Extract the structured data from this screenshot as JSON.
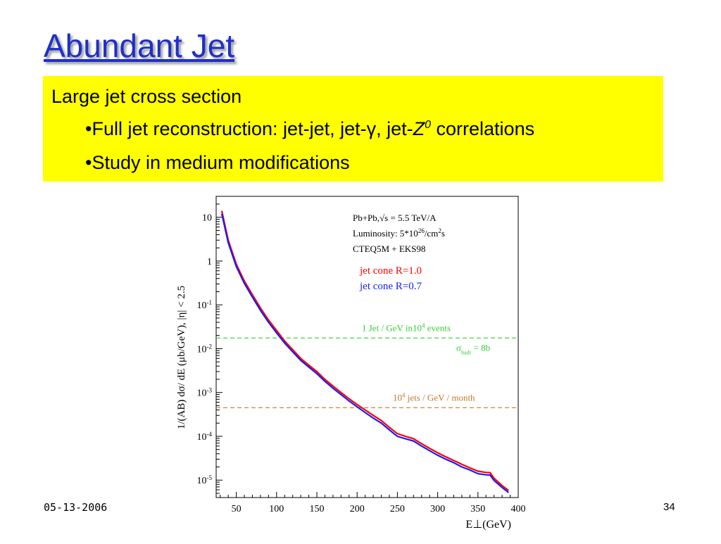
{
  "slide": {
    "title": "Abundant Jet",
    "bullets": {
      "line1": "Large jet cross section",
      "line2_prefix": "•Full jet reconstruction: jet-jet, jet-γ, jet-",
      "line2_z": "Z",
      "line2_sup": "0",
      "line2_suffix": " correlations",
      "line3": "•Study in medium modifications"
    },
    "footer_date": "05-13-2006",
    "page_number": "34"
  },
  "colors": {
    "title": "#1f2fc9",
    "highlight": "#ffff00",
    "r10": "#ff0000",
    "r07": "#1a1aff",
    "green_line": "#33cc33",
    "orange_line": "#cc7722"
  },
  "chart_data": {
    "type": "line",
    "xlabel": "E⊥(GeV)",
    "ylabel": "1/(AB) dσ/ dE  (μb/GeV),  |η| < 2.5",
    "x_ticks": [
      50,
      100,
      150,
      200,
      250,
      300,
      350,
      400
    ],
    "y_ticks": [
      {
        "value": 10,
        "label": "10"
      },
      {
        "value": 1,
        "label": "1"
      },
      {
        "value": 0.1,
        "base": "10",
        "exp": "-1"
      },
      {
        "value": 0.01,
        "base": "10",
        "exp": "-2"
      },
      {
        "value": 0.001,
        "base": "10",
        "exp": "-3"
      },
      {
        "value": 0.0001,
        "base": "10",
        "exp": "-4"
      },
      {
        "value": 1e-05,
        "base": "10",
        "exp": "-5"
      }
    ],
    "xlim": [
      25,
      400
    ],
    "ylim": [
      4e-06,
      30
    ],
    "y_scale": "log",
    "legend": {
      "line1": "Pb+Pb,√s = 5.5 TeV/A",
      "line2": "Luminosity: 5*10",
      "line2_exp": "26",
      "line2_unit": "/cm",
      "line2_unit_exp": "2",
      "line2_tail": "s",
      "line3": "CTEQ5M + EKS98",
      "series_a": "jet cone  R=1.0",
      "series_b": "jet cone  R=0.7"
    },
    "series": [
      {
        "name": "jet cone  R=1.0",
        "color": "#ff0000",
        "x": [
          32,
          40,
          50,
          60,
          70,
          80,
          90,
          100,
          110,
          120,
          130,
          140,
          150,
          160,
          170,
          180,
          190,
          200,
          210,
          220,
          230,
          240,
          250,
          260,
          270,
          280,
          290,
          300,
          310,
          320,
          330,
          340,
          350,
          360,
          365,
          370,
          380,
          388
        ],
        "values": [
          14,
          3.0,
          0.85,
          0.35,
          0.17,
          0.085,
          0.045,
          0.026,
          0.015,
          0.0095,
          0.006,
          0.0042,
          0.003,
          0.002,
          0.0014,
          0.001,
          0.00072,
          0.00053,
          0.0004,
          0.0003,
          0.00023,
          0.00016,
          0.000115,
          0.0001,
          8.8e-05,
          6.8e-05,
          5.3e-05,
          4.2e-05,
          3.4e-05,
          2.8e-05,
          2.3e-05,
          1.9e-05,
          1.6e-05,
          1.5e-05,
          1.48e-05,
          1.1e-05,
          7.5e-06,
          5.8e-06
        ]
      },
      {
        "name": "jet cone  R=0.7",
        "color": "#1a1aff",
        "x": [
          32,
          40,
          50,
          60,
          70,
          80,
          90,
          100,
          110,
          120,
          130,
          140,
          150,
          160,
          170,
          180,
          190,
          200,
          210,
          220,
          230,
          240,
          250,
          260,
          270,
          280,
          290,
          300,
          310,
          320,
          330,
          340,
          350,
          360,
          365,
          370,
          380,
          388
        ],
        "values": [
          12,
          2.6,
          0.75,
          0.31,
          0.15,
          0.075,
          0.04,
          0.023,
          0.0135,
          0.0085,
          0.0054,
          0.0038,
          0.0027,
          0.0018,
          0.00125,
          0.0009,
          0.00064,
          0.00047,
          0.00035,
          0.00026,
          0.0002,
          0.00014,
          0.0001,
          8.8e-05,
          7.8e-05,
          6e-05,
          4.7e-05,
          3.7e-05,
          3e-05,
          2.5e-05,
          2e-05,
          1.7e-05,
          1.4e-05,
          1.32e-05,
          1.3e-05,
          9.8e-06,
          6.8e-06,
          5.2e-06
        ]
      }
    ],
    "reference_lines": [
      {
        "value": 0.0175,
        "color": "#33cc33",
        "label": "1 Jet / GeV in10",
        "label_exp": "4",
        "label_tail": " events",
        "label2": "σ",
        "label2_sub": "hadr",
        "label2_tail": "= 8b"
      },
      {
        "value": 0.00045,
        "color": "#cc7722",
        "label": "10",
        "label_exp": "4",
        "label_tail": " jets / GeV / month"
      }
    ]
  }
}
